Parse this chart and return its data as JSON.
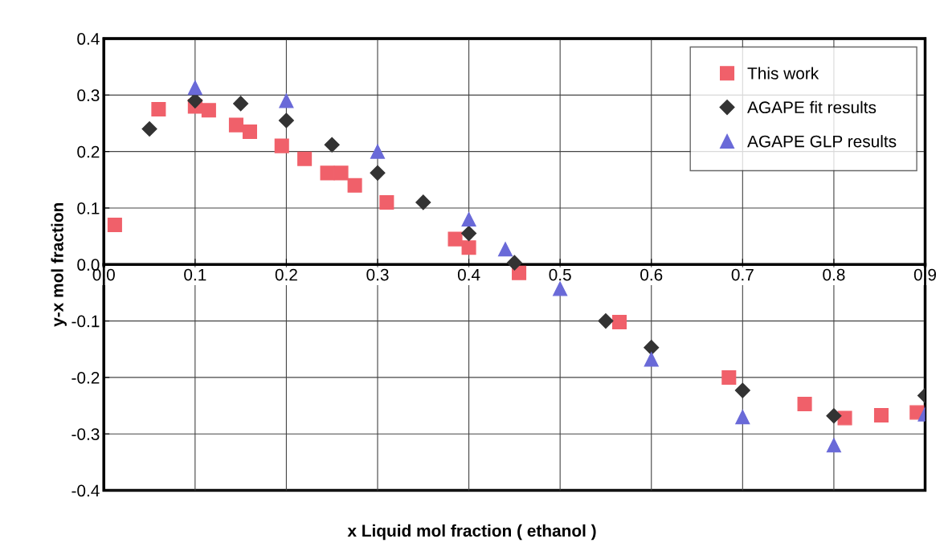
{
  "chart_data": {
    "type": "scatter",
    "xlabel": "x Liquid mol fraction ( ethanol )",
    "ylabel": "y-x mol fraction",
    "xlim": [
      0,
      0.9
    ],
    "ylim": [
      -0.4,
      0.4
    ],
    "xticks": [
      {
        "value": 0,
        "label": "0.0"
      },
      0.1,
      0.2,
      0.3,
      0.4,
      0.5,
      0.6,
      0.7,
      0.8,
      0.9
    ],
    "yticks": [
      -0.4,
      -0.3,
      -0.2,
      -0.1,
      {
        "value": 0,
        "label": "0.0"
      },
      0.1,
      0.2,
      0.3,
      0.4
    ],
    "grid": true,
    "legend": "top right",
    "series": [
      {
        "name": "This work",
        "color": "#f0606a",
        "marker": "square",
        "x": [
          0.012,
          0.06,
          0.1,
          0.115,
          0.145,
          0.16,
          0.195,
          0.22,
          0.245,
          0.26,
          0.275,
          0.31,
          0.385,
          0.4,
          0.455,
          0.565,
          0.685,
          0.768,
          0.812,
          0.852,
          0.891
        ],
        "values": [
          0.07,
          0.275,
          0.28,
          0.273,
          0.247,
          0.235,
          0.21,
          0.187,
          0.162,
          0.162,
          0.14,
          0.11,
          0.045,
          0.03,
          -0.015,
          -0.102,
          -0.2,
          -0.247,
          -0.272,
          -0.267,
          -0.262
        ]
      },
      {
        "name": "AGAPE fit results",
        "color": "#333333",
        "marker": "diamond",
        "x": [
          0.05,
          0.1,
          0.15,
          0.2,
          0.25,
          0.3,
          0.35,
          0.4,
          0.45,
          0.55,
          0.6,
          0.7,
          0.8,
          0.9
        ],
        "values": [
          0.24,
          0.29,
          0.285,
          0.255,
          0.212,
          0.162,
          0.11,
          0.055,
          0.003,
          -0.1,
          -0.147,
          -0.223,
          -0.268,
          -0.232
        ]
      },
      {
        "name": "AGAPE GLP results",
        "color": "#6a6ad8",
        "marker": "triangle",
        "x": [
          0.1,
          0.2,
          0.3,
          0.4,
          0.44,
          0.5,
          0.6,
          0.7,
          0.8,
          0.9
        ],
        "values": [
          0.313,
          0.29,
          0.2,
          0.08,
          0.027,
          -0.043,
          -0.168,
          -0.27,
          -0.32,
          -0.265
        ]
      }
    ]
  }
}
